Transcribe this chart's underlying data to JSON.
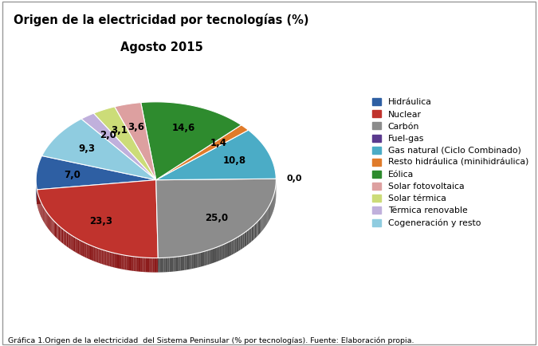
{
  "title_line1": "Origen de la electricidad por tecnologías (%)",
  "title_line2": "Agosto 2015",
  "caption": "Gráfica 1.Origen de la electricidad  del Sistema Peninsular (% por tecnologías). Fuente: Elaboración propia.",
  "labels": [
    "Hidráulica",
    "Nuclear",
    "Carbón",
    "Fuel-gas",
    "Gas natural (Ciclo Combinado)",
    "Resto hidráulica (minihidráulica)",
    "Eólica",
    "Solar fotovoltaica",
    "Solar térmica",
    "Térmica renovable",
    "Cogeneración y resto"
  ],
  "values": [
    7.0,
    23.3,
    25.0,
    0.0,
    10.8,
    1.4,
    14.6,
    3.6,
    3.1,
    2.0,
    9.3
  ],
  "colors": [
    "#2E5FA3",
    "#C0332D",
    "#8C8C8C",
    "#5B3A8E",
    "#4BACC6",
    "#E07B2A",
    "#2E8B2E",
    "#DDA0A0",
    "#CCDC78",
    "#C0B0DC",
    "#8FCCE0"
  ],
  "dark_colors": [
    "#1A3A6A",
    "#8B1A1A",
    "#505050",
    "#3A2060",
    "#2A6A80",
    "#A05010",
    "#1A5A1A",
    "#AA6060",
    "#8A9A40",
    "#7A6A9A",
    "#4A8AA0"
  ],
  "startangle": 162,
  "background_color": "#FFFFFF",
  "border_color": "#AAAAAA",
  "depth": 0.12
}
